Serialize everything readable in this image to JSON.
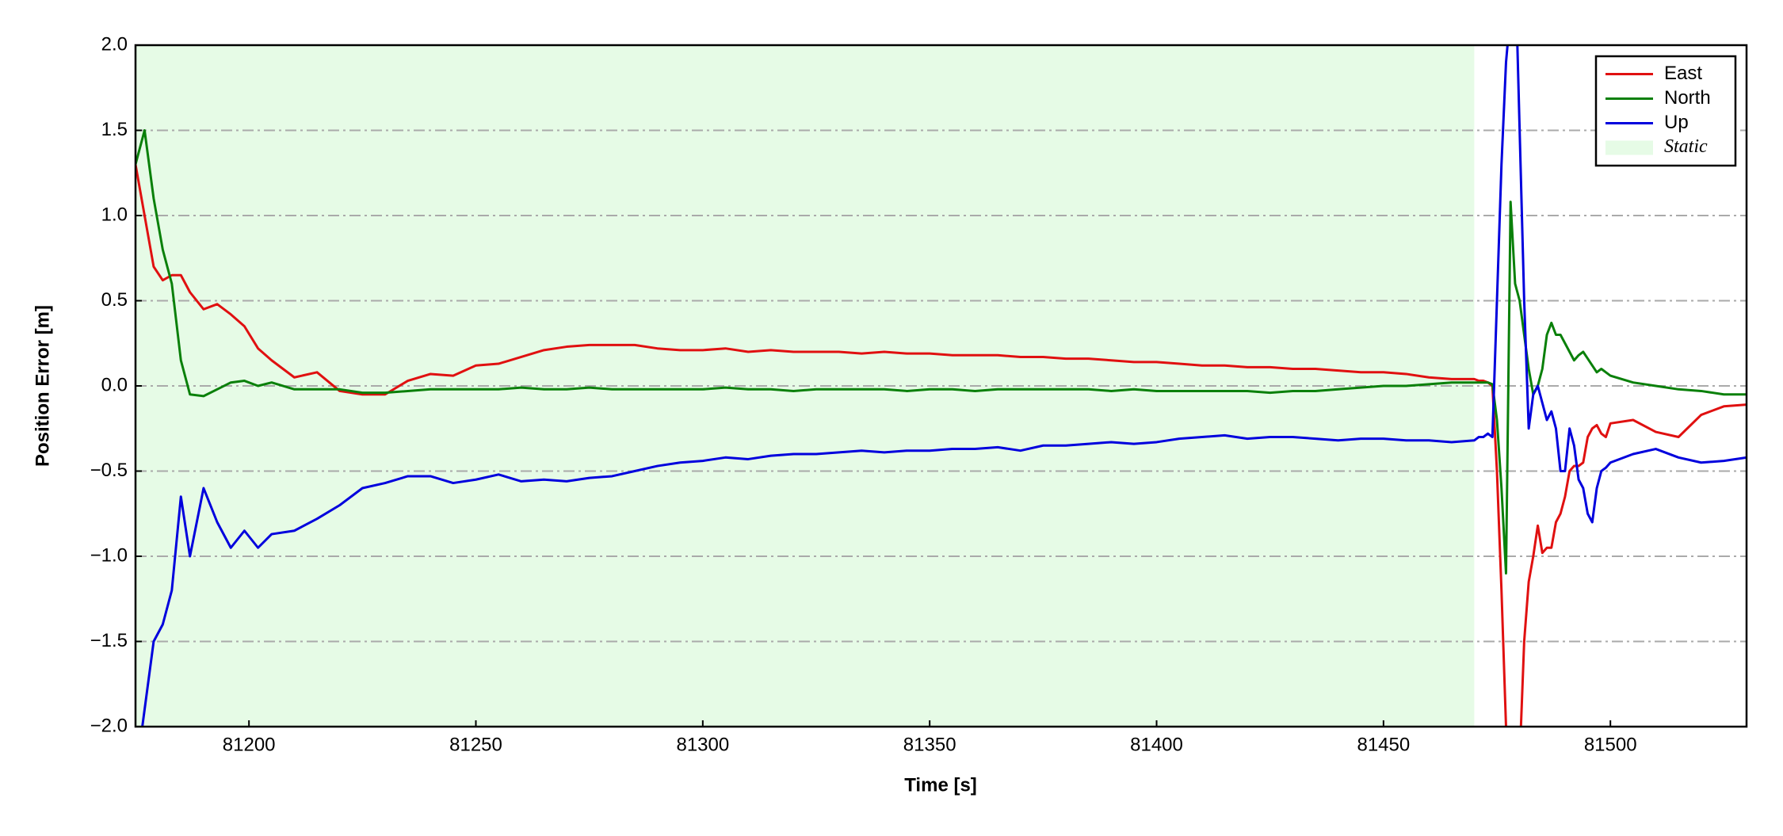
{
  "chart_data": {
    "type": "line",
    "xlabel": "Time [s]",
    "ylabel": "Position Error [m]",
    "xlim": [
      81175,
      81530
    ],
    "ylim": [
      -2,
      2
    ],
    "xticks": [
      81200,
      81250,
      81300,
      81350,
      81400,
      81450,
      81500
    ],
    "yticks": [
      {
        "value": -2,
        "label": "−2.0"
      },
      {
        "value": -1.5,
        "label": "−1.5"
      },
      {
        "value": -1,
        "label": "−1.0"
      },
      {
        "value": -0.5,
        "label": "−0.5"
      },
      {
        "value": 0,
        "label": "0.0"
      },
      {
        "value": 0.5,
        "label": "0.5"
      },
      {
        "value": 1,
        "label": "1.0"
      },
      {
        "value": 1.5,
        "label": "1.5"
      },
      {
        "value": 2,
        "label": "2.0"
      }
    ],
    "grid": true,
    "legend": "upper right",
    "spans": [
      {
        "name": "Static",
        "xmin": 81175,
        "xmax": 81470,
        "color": "#e6fbe6"
      }
    ],
    "x": [
      81175,
      81177,
      81179,
      81181,
      81183,
      81185,
      81187,
      81190,
      81193,
      81196,
      81199,
      81202,
      81205,
      81210,
      81215,
      81220,
      81225,
      81230,
      81235,
      81240,
      81245,
      81250,
      81255,
      81260,
      81265,
      81270,
      81275,
      81280,
      81285,
      81290,
      81295,
      81300,
      81305,
      81310,
      81315,
      81320,
      81325,
      81330,
      81335,
      81340,
      81345,
      81350,
      81355,
      81360,
      81365,
      81370,
      81375,
      81380,
      81385,
      81390,
      81395,
      81400,
      81405,
      81410,
      81415,
      81420,
      81425,
      81430,
      81435,
      81440,
      81445,
      81450,
      81455,
      81460,
      81465,
      81470,
      81471,
      81472,
      81473,
      81474,
      81475,
      81476,
      81477,
      81478,
      81479,
      81480,
      81481,
      81482,
      81483,
      81484,
      81485,
      81486,
      81487,
      81488,
      81489,
      81490,
      81491,
      81492,
      81493,
      81494,
      81495,
      81496,
      81497,
      81498,
      81499,
      81500,
      81505,
      81510,
      81515,
      81520,
      81525,
      81530
    ],
    "series": [
      {
        "name": "East",
        "color": "#e01010",
        "values": [
          1.3,
          1.0,
          0.7,
          0.62,
          0.65,
          0.65,
          0.55,
          0.45,
          0.48,
          0.42,
          0.35,
          0.22,
          0.15,
          0.05,
          0.08,
          -0.03,
          -0.05,
          -0.05,
          0.03,
          0.07,
          0.06,
          0.12,
          0.13,
          0.17,
          0.21,
          0.23,
          0.24,
          0.24,
          0.24,
          0.22,
          0.21,
          0.21,
          0.22,
          0.2,
          0.21,
          0.2,
          0.2,
          0.2,
          0.19,
          0.2,
          0.19,
          0.19,
          0.18,
          0.18,
          0.18,
          0.17,
          0.17,
          0.16,
          0.16,
          0.15,
          0.14,
          0.14,
          0.13,
          0.12,
          0.12,
          0.11,
          0.11,
          0.1,
          0.1,
          0.09,
          0.08,
          0.08,
          0.07,
          0.05,
          0.04,
          0.04,
          0.03,
          0.03,
          0.02,
          0.0,
          -0.5,
          -1.2,
          -2.0,
          -2.5,
          -2.5,
          -2.2,
          -1.5,
          -1.15,
          -1.0,
          -0.82,
          -0.98,
          -0.95,
          -0.95,
          -0.8,
          -0.75,
          -0.65,
          -0.5,
          -0.47,
          -0.47,
          -0.45,
          -0.3,
          -0.25,
          -0.23,
          -0.28,
          -0.3,
          -0.22,
          -0.2,
          -0.27,
          -0.3,
          -0.17,
          -0.12,
          -0.11
        ]
      },
      {
        "name": "North",
        "color": "#0a800a",
        "values": [
          1.3,
          1.5,
          1.1,
          0.8,
          0.6,
          0.15,
          -0.05,
          -0.06,
          -0.02,
          0.02,
          0.03,
          0.0,
          0.02,
          -0.02,
          -0.02,
          -0.02,
          -0.04,
          -0.04,
          -0.03,
          -0.02,
          -0.02,
          -0.02,
          -0.02,
          -0.01,
          -0.02,
          -0.02,
          -0.01,
          -0.02,
          -0.02,
          -0.02,
          -0.02,
          -0.02,
          -0.01,
          -0.02,
          -0.02,
          -0.03,
          -0.02,
          -0.02,
          -0.02,
          -0.02,
          -0.03,
          -0.02,
          -0.02,
          -0.03,
          -0.02,
          -0.02,
          -0.02,
          -0.02,
          -0.02,
          -0.03,
          -0.02,
          -0.03,
          -0.03,
          -0.03,
          -0.03,
          -0.03,
          -0.04,
          -0.03,
          -0.03,
          -0.02,
          -0.01,
          0.0,
          0.0,
          0.01,
          0.02,
          0.02,
          0.02,
          0.02,
          0.02,
          0.01,
          -0.2,
          -0.6,
          -1.1,
          1.08,
          0.6,
          0.5,
          0.3,
          0.1,
          -0.05,
          0.0,
          0.1,
          0.3,
          0.37,
          0.3,
          0.3,
          0.25,
          0.2,
          0.15,
          0.18,
          0.2,
          0.16,
          0.12,
          0.08,
          0.1,
          0.08,
          0.06,
          0.02,
          0.0,
          -0.02,
          -0.03,
          -0.05,
          -0.05
        ]
      },
      {
        "name": "Up",
        "color": "#0000dd",
        "values": [
          -2.3,
          -1.9,
          -1.5,
          -1.4,
          -1.2,
          -0.65,
          -1.0,
          -0.6,
          -0.8,
          -0.95,
          -0.85,
          -0.95,
          -0.87,
          -0.85,
          -0.78,
          -0.7,
          -0.6,
          -0.57,
          -0.53,
          -0.53,
          -0.57,
          -0.55,
          -0.52,
          -0.56,
          -0.55,
          -0.56,
          -0.54,
          -0.53,
          -0.5,
          -0.47,
          -0.45,
          -0.44,
          -0.42,
          -0.43,
          -0.41,
          -0.4,
          -0.4,
          -0.39,
          -0.38,
          -0.39,
          -0.38,
          -0.38,
          -0.37,
          -0.37,
          -0.36,
          -0.38,
          -0.35,
          -0.35,
          -0.34,
          -0.33,
          -0.34,
          -0.33,
          -0.31,
          -0.3,
          -0.29,
          -0.31,
          -0.3,
          -0.3,
          -0.31,
          -0.32,
          -0.31,
          -0.31,
          -0.32,
          -0.32,
          -0.33,
          -0.32,
          -0.3,
          -0.3,
          -0.28,
          -0.3,
          0.5,
          1.3,
          1.9,
          2.2,
          2.5,
          1.5,
          0.5,
          -0.25,
          -0.05,
          0.0,
          -0.1,
          -0.2,
          -0.15,
          -0.25,
          -0.5,
          -0.5,
          -0.25,
          -0.35,
          -0.55,
          -0.6,
          -0.75,
          -0.8,
          -0.6,
          -0.5,
          -0.48,
          -0.45,
          -0.4,
          -0.37,
          -0.42,
          -0.45,
          -0.44,
          -0.42
        ]
      }
    ]
  }
}
